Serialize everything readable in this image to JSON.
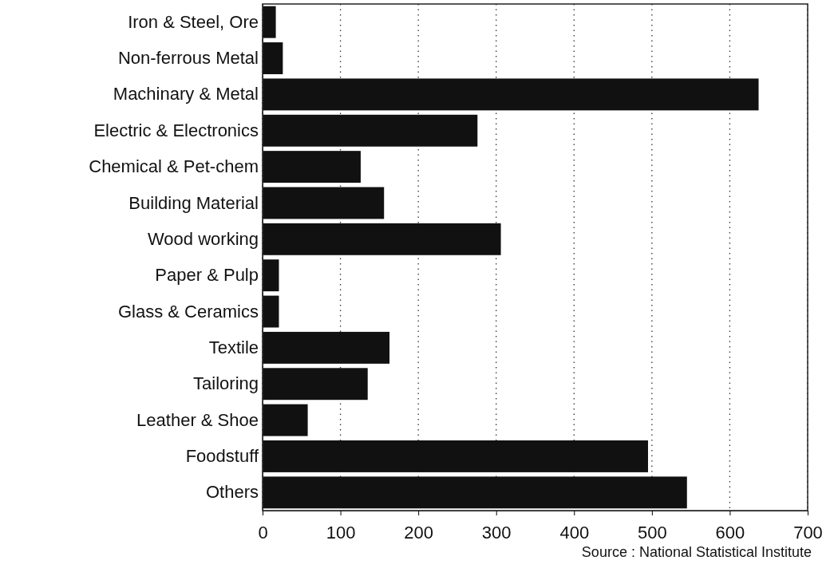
{
  "chart_data": {
    "type": "bar",
    "orientation": "horizontal",
    "categories": [
      "Iron & Steel, Ore",
      "Non-ferrous Metal",
      "Machinary & Metal",
      "Electric & Electronics",
      "Chemical & Pet-chem",
      "Building Material",
      "Wood working",
      "Paper & Pulp",
      "Glass & Ceramics",
      "Textile",
      "Tailoring",
      "Leather & Shoe",
      "Foodstuff",
      "Others"
    ],
    "values": [
      17,
      26,
      637,
      276,
      126,
      156,
      306,
      21,
      21,
      163,
      135,
      58,
      495,
      545
    ],
    "color": "#111111",
    "xlim": [
      0,
      700
    ],
    "xticks": [
      0,
      100,
      200,
      300,
      400,
      500,
      600,
      700
    ],
    "grid": "x",
    "annotations": [
      "Source : National Statistical Institute"
    ]
  }
}
